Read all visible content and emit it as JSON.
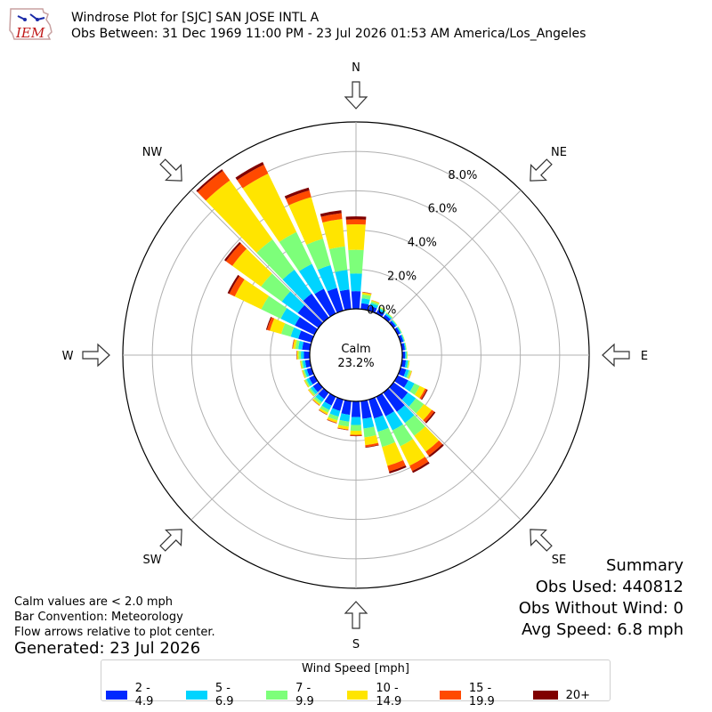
{
  "header": {
    "title": "Windrose Plot for [SJC] SAN JOSE INTL A",
    "subtitle": "Obs Between: 31 Dec 1969 11:00 PM - 23 Jul 2026 01:53 AM America/Los_Angeles"
  },
  "logo": {
    "text": "IEM",
    "icon": "iowa-state-logo"
  },
  "notes": {
    "calm_def": "Calm values are < 2.0 mph",
    "bar_convention": "Bar Convention: Meteorology",
    "flow": "Flow arrows relative to plot center.",
    "generated": "Generated: 23 Jul 2026"
  },
  "summary": {
    "title": "Summary",
    "obs_used": "Obs Used: 440812",
    "obs_without_wind": "Obs Without Wind: 0",
    "avg_speed": "Avg Speed: 6.8 mph"
  },
  "colors": {
    "bins": [
      "#0028ff",
      "#00d4ff",
      "#7dff7a",
      "#ffe500",
      "#ff4a00",
      "#800000"
    ],
    "grid": "#b0b0b0"
  },
  "chart_data": {
    "type": "windrose",
    "calm_label": "Calm",
    "calm_value": "23.2%",
    "calm_percent": 23.2,
    "directions": [
      "N",
      "NE",
      "E",
      "SE",
      "S",
      "SW",
      "W",
      "NW"
    ],
    "radial_ticks": [
      {
        "value": 0,
        "label": "0.0%"
      },
      {
        "value": 2,
        "label": "2.0%"
      },
      {
        "value": 4,
        "label": "4.0%"
      },
      {
        "value": 6,
        "label": "6.0%"
      },
      {
        "value": 8,
        "label": "8.0%"
      }
    ],
    "rmax": 9.5,
    "legend_title": "Wind Speed [mph]",
    "bins": [
      "2 - 4.9",
      "5 - 6.9",
      "7 - 9.9",
      "10 - 14.9",
      "15 - 19.9",
      "20+"
    ],
    "sectors": [
      {
        "dir": 0,
        "values": [
          0.9,
          0.9,
          1.2,
          1.3,
          0.25,
          0.15
        ]
      },
      {
        "dir": 10,
        "values": [
          0.3,
          0.25,
          0.2,
          0.1,
          0.02,
          0.01
        ]
      },
      {
        "dir": 20,
        "values": [
          0.25,
          0.15,
          0.1,
          0.05,
          0.01,
          0.0
        ]
      },
      {
        "dir": 30,
        "values": [
          0.2,
          0.1,
          0.06,
          0.03,
          0.0,
          0.0
        ]
      },
      {
        "dir": 40,
        "values": [
          0.18,
          0.08,
          0.05,
          0.02,
          0.0,
          0.0
        ]
      },
      {
        "dir": 50,
        "values": [
          0.15,
          0.06,
          0.03,
          0.01,
          0.0,
          0.0
        ]
      },
      {
        "dir": 60,
        "values": [
          0.15,
          0.06,
          0.03,
          0.01,
          0.0,
          0.0
        ]
      },
      {
        "dir": 70,
        "values": [
          0.15,
          0.05,
          0.03,
          0.01,
          0.0,
          0.0
        ]
      },
      {
        "dir": 80,
        "values": [
          0.15,
          0.05,
          0.03,
          0.01,
          0.0,
          0.0
        ]
      },
      {
        "dir": 90,
        "values": [
          0.15,
          0.06,
          0.04,
          0.02,
          0.0,
          0.0
        ]
      },
      {
        "dir": 100,
        "values": [
          0.2,
          0.1,
          0.06,
          0.03,
          0.0,
          0.0
        ]
      },
      {
        "dir": 110,
        "values": [
          0.3,
          0.15,
          0.1,
          0.05,
          0.01,
          0.0
        ]
      },
      {
        "dir": 120,
        "values": [
          0.6,
          0.35,
          0.3,
          0.3,
          0.1,
          0.05
        ]
      },
      {
        "dir": 130,
        "values": [
          0.9,
          0.5,
          0.5,
          0.5,
          0.15,
          0.08
        ]
      },
      {
        "dir": 140,
        "values": [
          1.2,
          0.7,
          0.8,
          1.0,
          0.25,
          0.1
        ]
      },
      {
        "dir": 150,
        "values": [
          1.1,
          0.8,
          0.9,
          1.1,
          0.3,
          0.1
        ]
      },
      {
        "dir": 160,
        "values": [
          1.0,
          0.7,
          0.8,
          1.0,
          0.3,
          0.1
        ]
      },
      {
        "dir": 170,
        "values": [
          0.9,
          0.5,
          0.45,
          0.4,
          0.1,
          0.03
        ]
      },
      {
        "dir": 180,
        "values": [
          0.8,
          0.4,
          0.3,
          0.2,
          0.05,
          0.02
        ]
      },
      {
        "dir": 190,
        "values": [
          0.7,
          0.35,
          0.25,
          0.15,
          0.03,
          0.01
        ]
      },
      {
        "dir": 200,
        "values": [
          0.6,
          0.3,
          0.2,
          0.12,
          0.03,
          0.01
        ]
      },
      {
        "dir": 210,
        "values": [
          0.5,
          0.25,
          0.15,
          0.1,
          0.02,
          0.01
        ]
      },
      {
        "dir": 220,
        "values": [
          0.4,
          0.2,
          0.12,
          0.08,
          0.02,
          0.01
        ]
      },
      {
        "dir": 230,
        "values": [
          0.35,
          0.15,
          0.1,
          0.05,
          0.01,
          0.0
        ]
      },
      {
        "dir": 240,
        "values": [
          0.3,
          0.15,
          0.08,
          0.05,
          0.01,
          0.0
        ]
      },
      {
        "dir": 250,
        "values": [
          0.25,
          0.12,
          0.08,
          0.05,
          0.01,
          0.0
        ]
      },
      {
        "dir": 260,
        "values": [
          0.25,
          0.12,
          0.08,
          0.05,
          0.01,
          0.0
        ]
      },
      {
        "dir": 270,
        "values": [
          0.3,
          0.15,
          0.12,
          0.08,
          0.02,
          0.01
        ]
      },
      {
        "dir": 280,
        "values": [
          0.4,
          0.2,
          0.15,
          0.12,
          0.03,
          0.01
        ]
      },
      {
        "dir": 290,
        "values": [
          0.7,
          0.4,
          0.5,
          0.6,
          0.15,
          0.05
        ]
      },
      {
        "dir": 300,
        "values": [
          1.1,
          0.8,
          1.1,
          1.5,
          0.3,
          0.1
        ]
      },
      {
        "dir": 310,
        "values": [
          1.3,
          1.0,
          1.3,
          1.8,
          0.4,
          0.1
        ]
      },
      {
        "dir": 320,
        "values": [
          1.5,
          1.5,
          1.9,
          3.7,
          0.6,
          0.1
        ]
      },
      {
        "dir": 330,
        "values": [
          1.4,
          1.4,
          1.8,
          3.3,
          0.5,
          0.15
        ]
      },
      {
        "dir": 340,
        "values": [
          1.2,
          1.2,
          1.4,
          2.2,
          0.35,
          0.15
        ]
      },
      {
        "dir": 350,
        "values": [
          1.0,
          1.0,
          1.2,
          1.4,
          0.3,
          0.15
        ]
      }
    ]
  }
}
